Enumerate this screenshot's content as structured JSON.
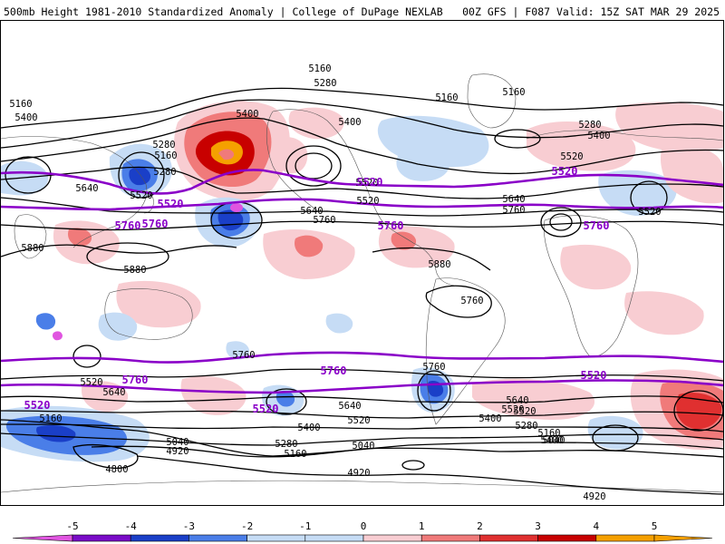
{
  "header": {
    "left_title": "500mb Height 1981-2010 Standardized Anomaly | College of DuPage NEXLAB",
    "right_title": "00Z GFS | F087 Valid: 15Z SAT MAR 29 2025"
  },
  "colors": {
    "anom_-5": "#e055e0",
    "anom_-4": "#7a0cc8",
    "anom_-3": "#1a3fc8",
    "anom_-2": "#4a7ee8",
    "anom_-1": "#c6dcf5",
    "anom_0": "#ffffff",
    "anom_1": "#f8cdd2",
    "anom_2": "#f07a7a",
    "anom_3": "#e03030",
    "anom_4": "#c80000",
    "anom_5": "#f5a000",
    "contour_black": "#000000",
    "contour_purple": "#8a00c8"
  },
  "colorbar": {
    "ticks": [
      "-5",
      "-4",
      "-3",
      "-2",
      "-1",
      "0",
      "1",
      "2",
      "3",
      "4",
      "5"
    ]
  },
  "contour_labels": {
    "black": [
      "5160",
      "5280",
      "5160",
      "5160",
      "5160",
      "5400",
      "5400",
      "5280",
      "5400",
      "5520",
      "5280",
      "5400",
      "5520",
      "5640",
      "5160",
      "5280",
      "5520",
      "5640",
      "5760",
      "5520",
      "5640",
      "5760",
      "5520",
      "5880",
      "5880",
      "5880",
      "5760",
      "5760",
      "5760",
      "5640",
      "5520",
      "5640",
      "5520",
      "5400",
      "5640",
      "5520",
      "5400",
      "5280",
      "5160",
      "5040",
      "5160",
      "4920",
      "5040",
      "4800",
      "5280",
      "5160",
      "5400",
      "5520",
      "5040",
      "4920",
      "4920"
    ],
    "purple": [
      "5520",
      "5520",
      "5520",
      "5760",
      "5760",
      "5760",
      "5760",
      "5760",
      "5760",
      "5520",
      "5520",
      "5520"
    ]
  },
  "map_layers": [
    "height-contours",
    "standardized-anomaly-shading",
    "coastlines",
    "country-borders"
  ]
}
